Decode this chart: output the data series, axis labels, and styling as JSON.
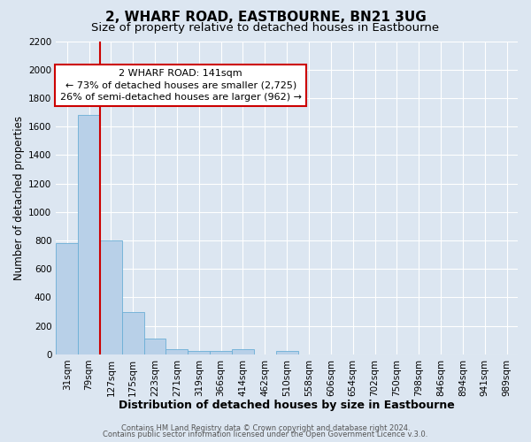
{
  "title": "2, WHARF ROAD, EASTBOURNE, BN21 3UG",
  "subtitle": "Size of property relative to detached houses in Eastbourne",
  "xlabel": "Distribution of detached houses by size in Eastbourne",
  "ylabel": "Number of detached properties",
  "footer_line1": "Contains HM Land Registry data © Crown copyright and database right 2024.",
  "footer_line2": "Contains public sector information licensed under the Open Government Licence v.3.0.",
  "bar_labels": [
    "31sqm",
    "79sqm",
    "127sqm",
    "175sqm",
    "223sqm",
    "271sqm",
    "319sqm",
    "366sqm",
    "414sqm",
    "462sqm",
    "510sqm",
    "558sqm",
    "606sqm",
    "654sqm",
    "702sqm",
    "750sqm",
    "798sqm",
    "846sqm",
    "894sqm",
    "941sqm",
    "989sqm"
  ],
  "bar_values": [
    780,
    1680,
    800,
    295,
    110,
    38,
    22,
    22,
    35,
    0,
    22,
    0,
    0,
    0,
    0,
    0,
    0,
    0,
    0,
    0,
    0
  ],
  "bar_color": "#b8d0e8",
  "bar_edge_color": "#6baed6",
  "background_color": "#dce6f1",
  "plot_bg_color": "#dce6f1",
  "grid_color": "#ffffff",
  "red_line_color": "#cc0000",
  "annotation_text": "2 WHARF ROAD: 141sqm\n← 73% of detached houses are smaller (2,725)\n26% of semi-detached houses are larger (962) →",
  "annotation_box_edge": "#cc0000",
  "ylim": [
    0,
    2200
  ],
  "yticks": [
    0,
    200,
    400,
    600,
    800,
    1000,
    1200,
    1400,
    1600,
    1800,
    2000,
    2200
  ],
  "title_fontsize": 11,
  "subtitle_fontsize": 9.5,
  "xlabel_fontsize": 9,
  "ylabel_fontsize": 8.5,
  "tick_fontsize": 7.5,
  "annotation_fontsize": 8,
  "footer_fontsize": 6
}
